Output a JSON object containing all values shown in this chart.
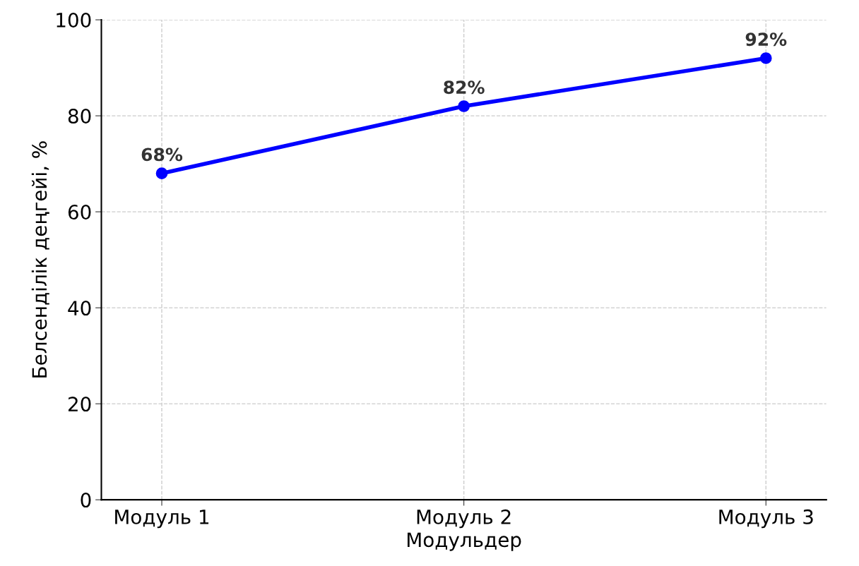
{
  "chart_data": {
    "type": "line",
    "xlabel": "Модульдер",
    "ylabel": "Белсенділік деңгейі, %",
    "categories": [
      "Модуль 1",
      "Модуль 2",
      "Модуль 3"
    ],
    "series": [
      {
        "color": "#0000ff",
        "values": [
          68,
          82,
          92
        ],
        "value_labels": [
          "68%",
          "82%",
          "92%"
        ]
      }
    ],
    "ylim": [
      0,
      100
    ],
    "yticks": [
      0,
      20,
      40,
      60,
      80,
      100
    ],
    "grid": true,
    "marker": "circle",
    "line_style": "solid"
  }
}
